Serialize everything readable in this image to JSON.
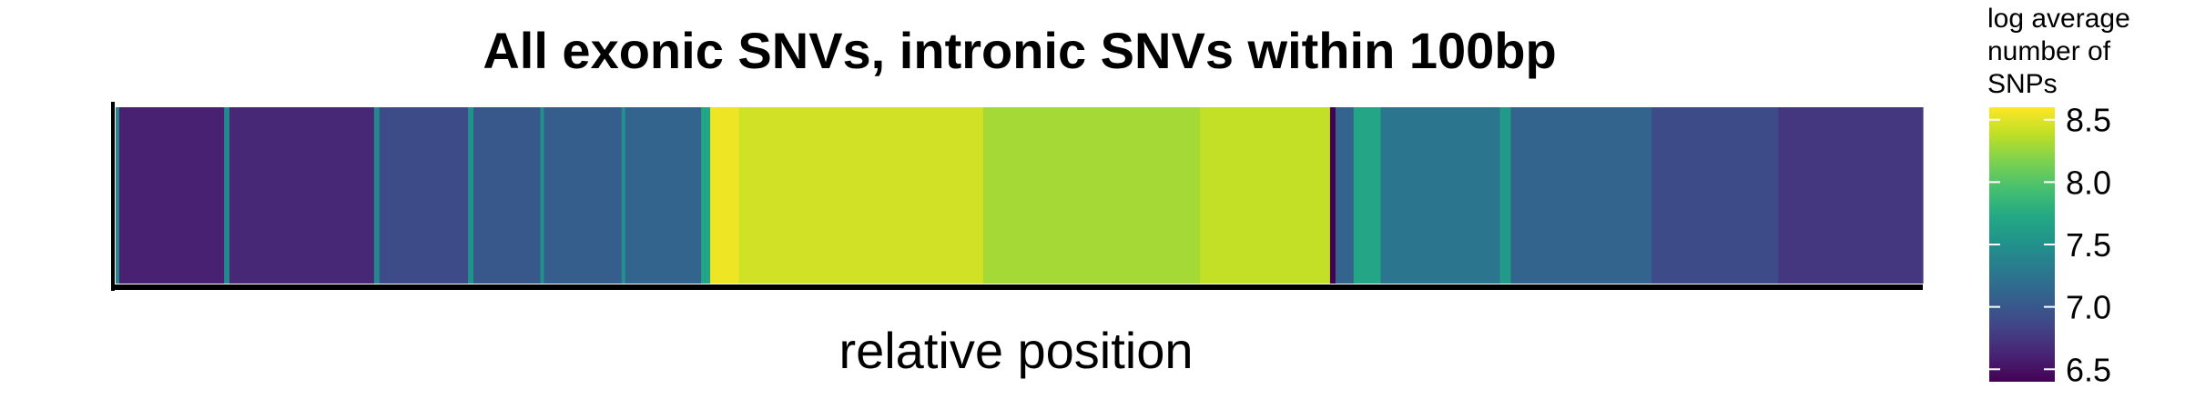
{
  "chart_data": {
    "type": "heatmap",
    "title": "All exonic SNVs, intronic SNVs within 100bp",
    "xlabel": "relative position",
    "ylabel": "",
    "grid": false,
    "x_ticks": false,
    "legend": {
      "placement": "right",
      "title_lines": [
        "log average",
        "number of",
        "SNPs"
      ],
      "ticks": [
        6.5,
        7.0,
        7.5,
        8.0,
        8.5
      ],
      "tick_labels": [
        "6.5",
        "7.0",
        "7.5",
        "8.0",
        "8.5"
      ],
      "range": [
        6.4,
        8.6
      ]
    },
    "colorscale": "viridis",
    "segments": [
      {
        "from": 0.0,
        "to": 0.002,
        "value": 7.4
      },
      {
        "from": 0.002,
        "to": 0.06,
        "value": 6.6
      },
      {
        "from": 0.06,
        "to": 0.063,
        "value": 7.4
      },
      {
        "from": 0.063,
        "to": 0.143,
        "value": 6.65
      },
      {
        "from": 0.143,
        "to": 0.146,
        "value": 7.4
      },
      {
        "from": 0.146,
        "to": 0.195,
        "value": 6.9
      },
      {
        "from": 0.195,
        "to": 0.198,
        "value": 7.5
      },
      {
        "from": 0.198,
        "to": 0.235,
        "value": 7.0
      },
      {
        "from": 0.235,
        "to": 0.237,
        "value": 7.5
      },
      {
        "from": 0.237,
        "to": 0.28,
        "value": 7.05
      },
      {
        "from": 0.28,
        "to": 0.282,
        "value": 7.5
      },
      {
        "from": 0.282,
        "to": 0.324,
        "value": 7.1
      },
      {
        "from": 0.324,
        "to": 0.329,
        "value": 7.7
      },
      {
        "from": 0.329,
        "to": 0.345,
        "value": 8.55
      },
      {
        "from": 0.345,
        "to": 0.48,
        "value": 8.45
      },
      {
        "from": 0.48,
        "to": 0.6,
        "value": 8.3
      },
      {
        "from": 0.6,
        "to": 0.672,
        "value": 8.4
      },
      {
        "from": 0.672,
        "to": 0.675,
        "value": 6.4
      },
      {
        "from": 0.675,
        "to": 0.685,
        "value": 7.1
      },
      {
        "from": 0.685,
        "to": 0.7,
        "value": 7.7
      },
      {
        "from": 0.7,
        "to": 0.766,
        "value": 7.25
      },
      {
        "from": 0.766,
        "to": 0.772,
        "value": 7.6
      },
      {
        "from": 0.772,
        "to": 0.85,
        "value": 7.1
      },
      {
        "from": 0.85,
        "to": 0.92,
        "value": 6.9
      },
      {
        "from": 0.92,
        "to": 1.0,
        "value": 6.75
      }
    ]
  }
}
